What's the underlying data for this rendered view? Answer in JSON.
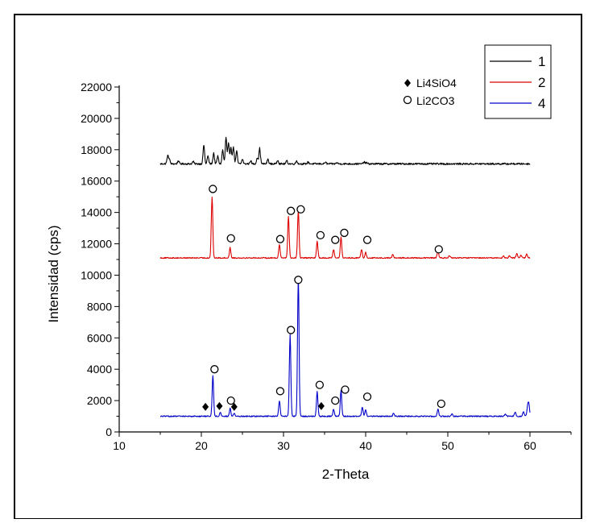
{
  "chart_data": {
    "type": "line",
    "xlabel": "2-Theta",
    "ylabel": "Intensidad (cps)",
    "xlim": [
      10,
      65
    ],
    "ylim": [
      0,
      22000
    ],
    "x_ticks": [
      10,
      20,
      30,
      40,
      50,
      60
    ],
    "x_tick_labels": [
      "10",
      "20",
      "30",
      "40",
      "50",
      "60"
    ],
    "y_ticks": [
      0,
      2000,
      4000,
      6000,
      8000,
      10000,
      12000,
      14000,
      16000,
      18000,
      20000,
      22000
    ],
    "y_tick_labels": [
      "0",
      "2000",
      "4000",
      "6000",
      "8000",
      "10000",
      "12000",
      "14000",
      "16000",
      "18000",
      "20000",
      "22000"
    ],
    "grid": false,
    "legend_position": "top-right",
    "series": [
      {
        "name": "1",
        "color": "#000000",
        "x_range": [
          15,
          60
        ],
        "baseline": 17100,
        "peaks": [
          [
            15.9,
            500
          ],
          [
            16.1,
            300
          ],
          [
            17.2,
            200
          ],
          [
            19.0,
            150
          ],
          [
            20.3,
            1200
          ],
          [
            20.8,
            500
          ],
          [
            21.5,
            700
          ],
          [
            22.0,
            500
          ],
          [
            22.6,
            900
          ],
          [
            23.0,
            1700
          ],
          [
            23.3,
            1300
          ],
          [
            23.6,
            1100
          ],
          [
            23.9,
            1100
          ],
          [
            24.3,
            800
          ],
          [
            25.0,
            300
          ],
          [
            26.0,
            200
          ],
          [
            26.8,
            400
          ],
          [
            27.1,
            1000
          ],
          [
            28.1,
            300
          ],
          [
            29.3,
            250
          ],
          [
            30.4,
            200
          ],
          [
            31.6,
            200
          ],
          [
            33.0,
            120
          ],
          [
            35.1,
            100
          ],
          [
            36.5,
            80
          ],
          [
            39.8,
            120
          ],
          [
            40.1,
            80
          ]
        ],
        "noise": 110
      },
      {
        "name": "2",
        "color": "#dc0000",
        "x_range": [
          15,
          60
        ],
        "baseline": 11100,
        "peaks": [
          [
            21.3,
            3900
          ],
          [
            23.5,
            650
          ],
          [
            29.5,
            850
          ],
          [
            30.6,
            2650
          ],
          [
            31.8,
            3050
          ],
          [
            34.1,
            1050
          ],
          [
            36.1,
            550
          ],
          [
            37.0,
            1350
          ],
          [
            39.5,
            550
          ],
          [
            40.0,
            350
          ],
          [
            43.3,
            200
          ],
          [
            48.8,
            450
          ],
          [
            50.2,
            150
          ],
          [
            56.8,
            120
          ],
          [
            57.5,
            150
          ],
          [
            58.4,
            250
          ],
          [
            58.9,
            200
          ],
          [
            59.6,
            250
          ]
        ],
        "noise": 70
      },
      {
        "name": "4",
        "color": "#0000c8",
        "x_range": [
          15,
          60
        ],
        "baseline": 1000,
        "peaks": [
          [
            21.4,
            2600
          ],
          [
            22.3,
            250
          ],
          [
            23.5,
            500
          ],
          [
            24.0,
            200
          ],
          [
            29.5,
            1000
          ],
          [
            30.8,
            5200
          ],
          [
            31.8,
            8900
          ],
          [
            34.1,
            1600
          ],
          [
            36.1,
            450
          ],
          [
            37.0,
            1650
          ],
          [
            39.6,
            600
          ],
          [
            40.0,
            400
          ],
          [
            43.4,
            200
          ],
          [
            48.8,
            450
          ],
          [
            50.5,
            150
          ],
          [
            57.0,
            150
          ],
          [
            58.2,
            250
          ],
          [
            59.2,
            300
          ],
          [
            59.7,
            450
          ],
          [
            59.85,
            800
          ]
        ],
        "noise": 70
      }
    ],
    "markers": {
      "diamond_label": "Li4SiO4",
      "circle_label": "Li2CO3",
      "diamond": [
        [
          20.5,
          1600
        ],
        [
          22.2,
          1650
        ],
        [
          24.0,
          1600
        ],
        [
          34.6,
          1650
        ]
      ],
      "circle": [
        [
          21.4,
          15500
        ],
        [
          23.6,
          12350
        ],
        [
          29.6,
          12300
        ],
        [
          30.9,
          14100
        ],
        [
          32.1,
          14200
        ],
        [
          34.5,
          12550
        ],
        [
          36.3,
          12250
        ],
        [
          37.4,
          12700
        ],
        [
          40.2,
          12250
        ],
        [
          48.9,
          11650
        ],
        [
          21.6,
          4000
        ],
        [
          23.6,
          2000
        ],
        [
          29.6,
          2600
        ],
        [
          30.9,
          6500
        ],
        [
          31.8,
          9700
        ],
        [
          34.4,
          3000
        ],
        [
          36.3,
          2000
        ],
        [
          37.5,
          2700
        ],
        [
          40.2,
          2250
        ],
        [
          49.2,
          1800
        ]
      ]
    }
  }
}
